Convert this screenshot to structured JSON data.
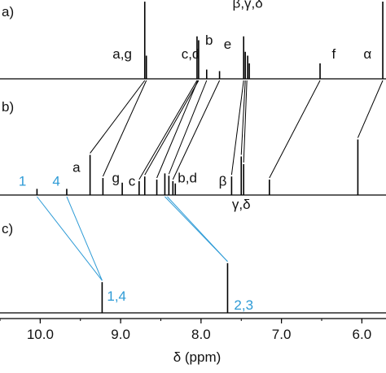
{
  "chart_data": {
    "type": "line",
    "x_unit": "ppm",
    "xlabel": "δ (ppm)",
    "xlim": [
      10.5,
      5.7
    ],
    "x_ticks": [
      10.0,
      9.0,
      8.0,
      7.0,
      6.0
    ],
    "x_tick_labels": [
      "10.0",
      "9.0",
      "8.0",
      "7.0",
      "6.0"
    ],
    "grid": false,
    "colors": {
      "trace": "#000000",
      "correlation_line": "#000000",
      "blue_label": "#2e9bd6",
      "blue_line": "#2e9bd6"
    },
    "panels": [
      {
        "label": "a)",
        "peaks": [
          {
            "x": 8.7,
            "h": 1.0
          },
          {
            "x": 8.68,
            "h": 0.3
          },
          {
            "x": 8.05,
            "h": 0.55
          },
          {
            "x": 8.03,
            "h": 0.5
          },
          {
            "x": 7.93,
            "h": 0.12
          },
          {
            "x": 7.77,
            "h": 0.1
          },
          {
            "x": 7.47,
            "h": 0.55
          },
          {
            "x": 7.45,
            "h": 0.35
          },
          {
            "x": 7.42,
            "h": 0.3
          },
          {
            "x": 7.4,
            "h": 0.2
          },
          {
            "x": 6.52,
            "h": 0.2
          },
          {
            "x": 5.74,
            "h": 1.0
          }
        ],
        "annotations": [
          {
            "text": "a,g",
            "x": 8.98,
            "y": 0.22
          },
          {
            "text": "c,d",
            "x": 8.13,
            "y": 0.22
          },
          {
            "text": "b",
            "x": 7.9,
            "y": 0.4
          },
          {
            "text": "e",
            "x": 7.67,
            "y": 0.35
          },
          {
            "text": "β,γ,δ",
            "x": 7.42,
            "y": 0.88
          },
          {
            "text": "f",
            "x": 6.35,
            "y": 0.22
          },
          {
            "text": "α",
            "x": 5.93,
            "y": 0.22
          }
        ]
      },
      {
        "label": "b)",
        "peaks": [
          {
            "x": 10.04,
            "h": 0.08
          },
          {
            "x": 9.67,
            "h": 0.08
          },
          {
            "x": 9.38,
            "h": 0.52
          },
          {
            "x": 9.22,
            "h": 0.22
          },
          {
            "x": 8.98,
            "h": 0.16
          },
          {
            "x": 8.77,
            "h": 0.18
          },
          {
            "x": 8.7,
            "h": 0.24
          },
          {
            "x": 8.55,
            "h": 0.2
          },
          {
            "x": 8.45,
            "h": 0.28
          },
          {
            "x": 8.4,
            "h": 0.25
          },
          {
            "x": 8.35,
            "h": 0.18
          },
          {
            "x": 8.32,
            "h": 0.15
          },
          {
            "x": 7.62,
            "h": 0.24
          },
          {
            "x": 7.5,
            "h": 0.5
          },
          {
            "x": 7.47,
            "h": 0.4
          },
          {
            "x": 7.15,
            "h": 0.2
          },
          {
            "x": 6.05,
            "h": 0.72
          }
        ],
        "annotations": [
          {
            "text": "a",
            "x": 9.55,
            "y": 0.26
          },
          {
            "text": "g",
            "x": 9.06,
            "y": 0.12
          },
          {
            "text": "c",
            "x": 8.86,
            "y": 0.08
          },
          {
            "text": "b,d",
            "x": 8.17,
            "y": 0.12
          },
          {
            "text": "β",
            "x": 7.73,
            "y": 0.08
          },
          {
            "text": "γ,δ",
            "x": 7.5,
            "y": -0.22
          }
        ]
      },
      {
        "label": "c)",
        "peaks": [
          {
            "x": 9.23,
            "h": 0.42
          },
          {
            "x": 7.67,
            "h": 0.68
          }
        ],
        "annotations": [
          {
            "text": "1,4",
            "x": 9.05,
            "y": 0.12,
            "color": "#2e9bd6"
          },
          {
            "text": "2,3",
            "x": 7.47,
            "y": 0.0,
            "color": "#2e9bd6"
          }
        ]
      }
    ],
    "correlation_lines": [
      {
        "from": [
          8.7,
          0
        ],
        "to": [
          9.38,
          1
        ],
        "color": "#000000"
      },
      {
        "from": [
          8.68,
          0
        ],
        "to": [
          9.22,
          1
        ],
        "color": "#000000"
      },
      {
        "from": [
          8.05,
          0
        ],
        "to": [
          8.77,
          1
        ],
        "color": "#000000"
      },
      {
        "from": [
          8.03,
          0
        ],
        "to": [
          8.7,
          1
        ],
        "color": "#000000"
      },
      {
        "from": [
          8.04,
          0
        ],
        "to": [
          8.55,
          1
        ],
        "color": "#000000"
      },
      {
        "from": [
          7.93,
          0
        ],
        "to": [
          8.4,
          1
        ],
        "color": "#000000"
      },
      {
        "from": [
          7.77,
          0
        ],
        "to": [
          8.35,
          1
        ],
        "color": "#000000"
      },
      {
        "from": [
          7.47,
          0
        ],
        "to": [
          7.62,
          1
        ],
        "color": "#000000"
      },
      {
        "from": [
          7.45,
          0
        ],
        "to": [
          7.5,
          1
        ],
        "color": "#000000"
      },
      {
        "from": [
          7.43,
          0
        ],
        "to": [
          7.47,
          1
        ],
        "color": "#000000"
      },
      {
        "from": [
          6.52,
          0
        ],
        "to": [
          7.15,
          1
        ],
        "color": "#000000"
      },
      {
        "from": [
          5.74,
          0
        ],
        "to": [
          6.05,
          1
        ],
        "color": "#000000"
      },
      {
        "from": [
          10.04,
          1
        ],
        "to": [
          9.23,
          2
        ],
        "color": "#2e9bd6"
      },
      {
        "from": [
          9.67,
          1
        ],
        "to": [
          9.23,
          2
        ],
        "color": "#2e9bd6"
      },
      {
        "from": [
          8.45,
          1
        ],
        "to": [
          7.67,
          2
        ],
        "color": "#2e9bd6"
      },
      {
        "from": [
          8.42,
          1
        ],
        "to": [
          7.67,
          2
        ],
        "color": "#2e9bd6"
      }
    ],
    "extra_labels": [
      {
        "text": "1",
        "x": 10.22,
        "panel": 1,
        "y": 0.08,
        "color": "#2e9bd6"
      },
      {
        "text": "4",
        "x": 9.8,
        "panel": 1,
        "y": 0.08,
        "color": "#2e9bd6"
      }
    ]
  }
}
